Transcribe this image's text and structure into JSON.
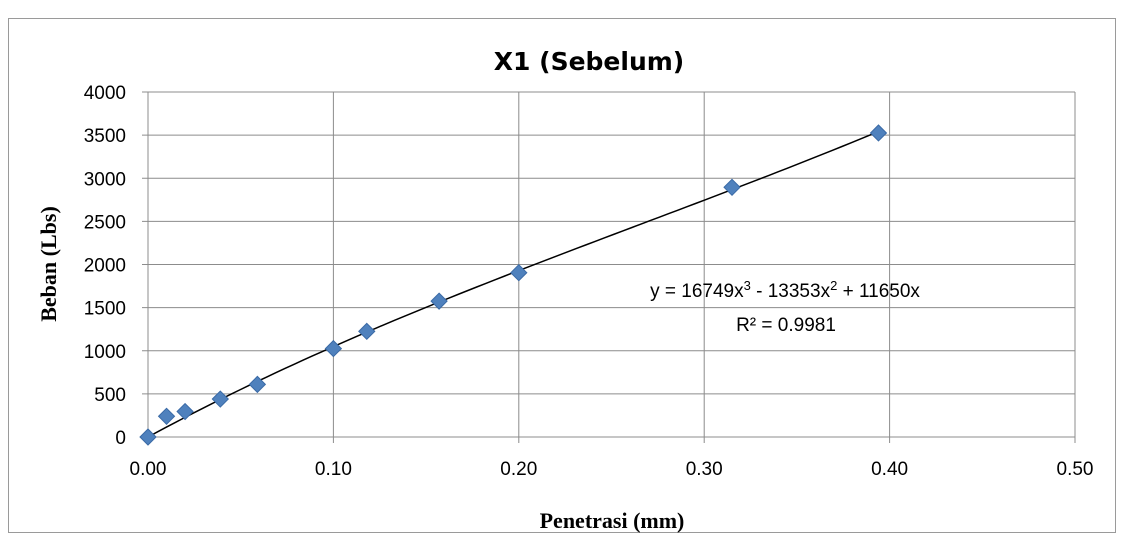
{
  "chart_data": {
    "type": "scatter",
    "title": "X1 (Sebelum)",
    "xlabel": "Penetrasi (mm)",
    "ylabel": "Beban (Lbs)",
    "xlim": [
      0,
      0.5
    ],
    "ylim": [
      0,
      4000
    ],
    "x_ticks": [
      "0.00",
      "0.10",
      "0.20",
      "0.30",
      "0.40",
      "0.50"
    ],
    "y_ticks": [
      "0",
      "500",
      "1000",
      "1500",
      "2000",
      "2500",
      "3000",
      "3500",
      "4000"
    ],
    "grid": true,
    "series": [
      {
        "color": "#4f81bd",
        "marker": "diamond",
        "points": [
          {
            "x": 0.0,
            "y": 0
          },
          {
            "x": 0.01,
            "y": 240
          },
          {
            "x": 0.02,
            "y": 295
          },
          {
            "x": 0.039,
            "y": 440
          },
          {
            "x": 0.059,
            "y": 610
          },
          {
            "x": 0.1,
            "y": 1025
          },
          {
            "x": 0.118,
            "y": 1225
          },
          {
            "x": 0.157,
            "y": 1575
          },
          {
            "x": 0.2,
            "y": 1905
          },
          {
            "x": 0.315,
            "y": 2895
          },
          {
            "x": 0.394,
            "y": 3525
          }
        ]
      }
    ],
    "trendline": {
      "type": "polynomial",
      "coefficients": {
        "a3": 16749,
        "a2": -13353,
        "a1": 11650,
        "a0": 0
      },
      "color": "#000000",
      "equation_parts": [
        "y = 16749x",
        "3",
        " - 13353x",
        "2",
        " + 11650x"
      ],
      "r_squared_label": "R² = 0.9981"
    }
  }
}
